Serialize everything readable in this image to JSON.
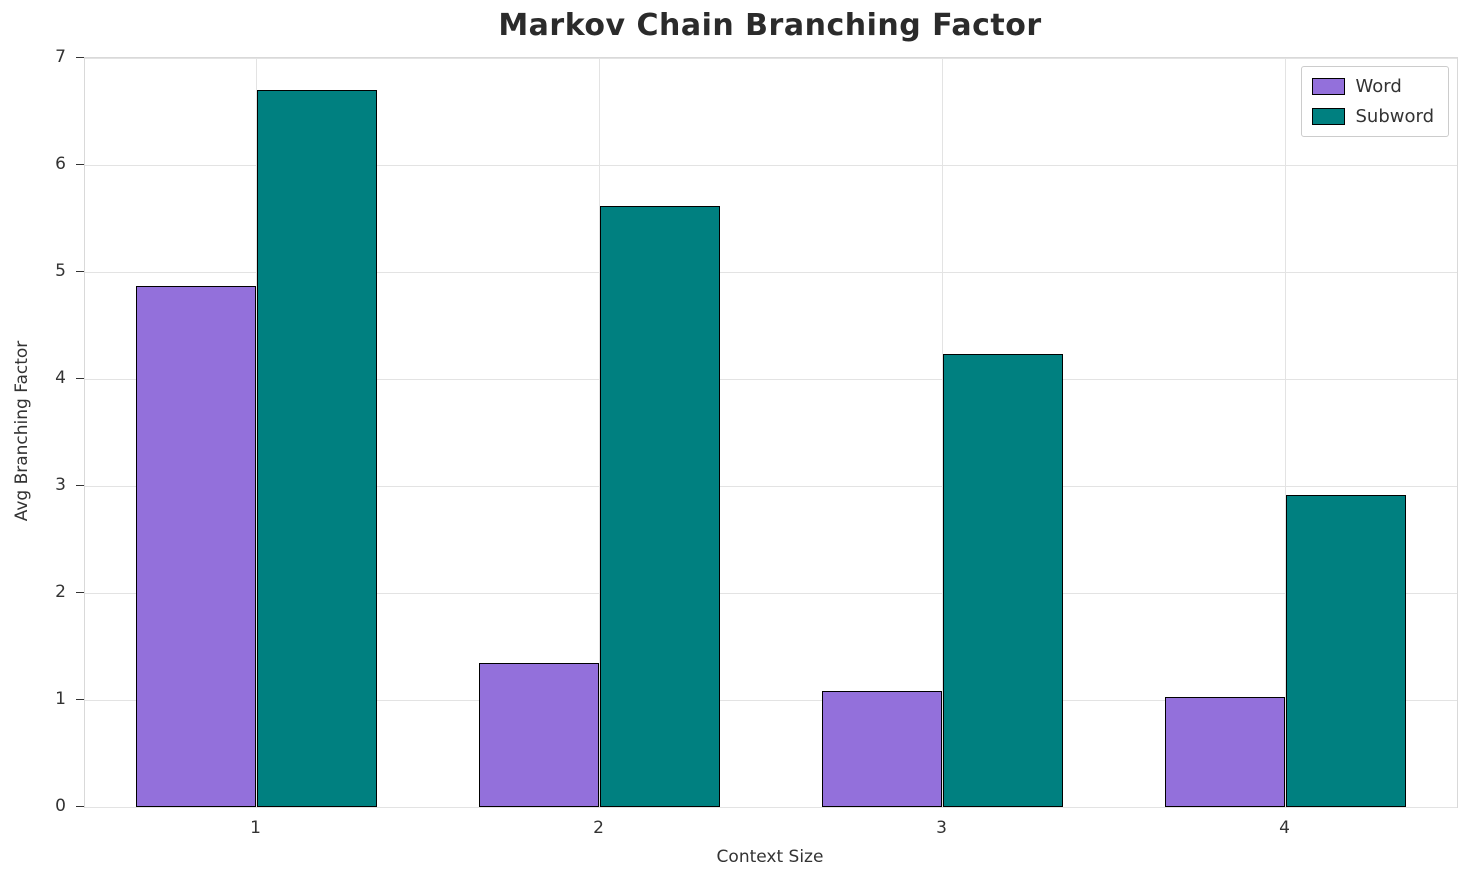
{
  "chart_data": {
    "type": "bar",
    "title": "Markov Chain Branching Factor",
    "xlabel": "Context Size",
    "ylabel": "Avg Branching Factor",
    "categories": [
      "1",
      "2",
      "3",
      "4"
    ],
    "series": [
      {
        "name": "Word",
        "color": "#9370DB",
        "values": [
          4.87,
          1.35,
          1.08,
          1.03
        ]
      },
      {
        "name": "Subword",
        "color": "#008080",
        "values": [
          6.7,
          5.62,
          4.23,
          2.92
        ]
      }
    ],
    "ylim": [
      0,
      7
    ],
    "yticks": [
      0,
      1,
      2,
      3,
      4,
      5,
      6,
      7
    ],
    "grid": true,
    "legend_position": "upper right",
    "bar_width_fraction": 0.35,
    "grid_color": "#e3e3e3",
    "edge_color": "#000000"
  }
}
